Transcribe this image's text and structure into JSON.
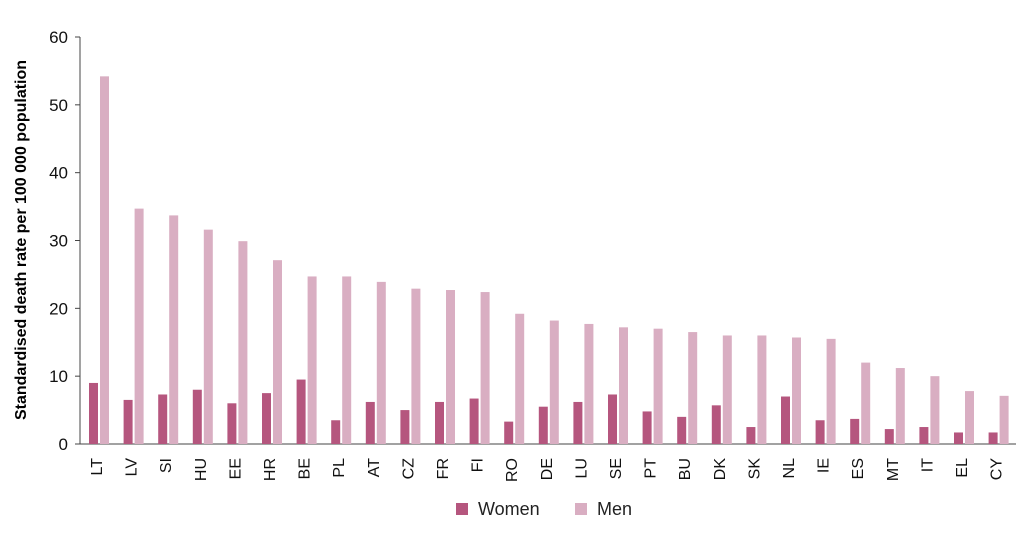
{
  "chart_data": {
    "type": "bar",
    "ylabel": "Standardised death rate per 100 000 population",
    "ylim": [
      0,
      60
    ],
    "yticks": [
      0,
      10,
      20,
      30,
      40,
      50,
      60
    ],
    "categories": [
      "LT",
      "LV",
      "SI",
      "HU",
      "EE",
      "HR",
      "BE",
      "PL",
      "AT",
      "CZ",
      "FR",
      "FI",
      "RO",
      "DE",
      "LU",
      "SE",
      "PT",
      "BU",
      "DK",
      "SK",
      "NL",
      "IE",
      "ES",
      "MT",
      "IT",
      "EL",
      "CY"
    ],
    "series": [
      {
        "name": "Women",
        "color": "#b5567e",
        "values": [
          9.0,
          6.5,
          7.3,
          8.0,
          6.0,
          7.5,
          9.5,
          3.5,
          6.2,
          5.0,
          6.2,
          6.7,
          3.3,
          5.5,
          6.2,
          7.3,
          4.8,
          4.0,
          5.7,
          2.5,
          7.0,
          3.5,
          3.7,
          2.2,
          2.5,
          1.7,
          1.7
        ]
      },
      {
        "name": "Men",
        "color": "#d9aec2",
        "values": [
          54.2,
          34.7,
          33.7,
          31.6,
          29.9,
          27.1,
          24.7,
          24.7,
          23.9,
          22.9,
          22.7,
          22.4,
          19.2,
          18.2,
          17.7,
          17.2,
          17.0,
          16.5,
          16.0,
          16.0,
          15.7,
          15.5,
          12.0,
          11.2,
          10.0,
          7.8,
          7.1
        ]
      }
    ],
    "legend_position": "bottom-center",
    "grid": false
  }
}
